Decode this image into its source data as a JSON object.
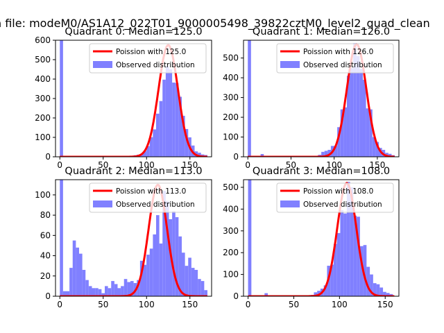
{
  "figure": {
    "suptitle": "n file: modeM0/AS1A12_022T01_9000005498_39822cztM0_level2_quad_clean"
  },
  "colors": {
    "bar": "#8080ff",
    "curve": "#ff0000",
    "axis": "#000000"
  },
  "chart_data": [
    {
      "type": "bar",
      "title": "Quadrant 0: Median=125.0",
      "xlim": [
        -5,
        175
      ],
      "ylim": [
        0,
        600
      ],
      "xticks": [
        0,
        50,
        100,
        150
      ],
      "yticks": [
        0,
        100,
        200,
        300,
        400,
        500,
        600
      ],
      "median": 125.0,
      "poisson_peak": 575,
      "legend": {
        "position": "top-right",
        "curve_label": "Poission with 125.0",
        "bar_label": "Observed distribution"
      },
      "bar_width": 3.7,
      "bars": [
        [
          0,
          600
        ],
        [
          3.7,
          3
        ],
        [
          7.4,
          2
        ],
        [
          11.1,
          2
        ],
        [
          14.8,
          2
        ],
        [
          18.5,
          1
        ],
        [
          22.2,
          2
        ],
        [
          25.9,
          1
        ],
        [
          29.6,
          1
        ],
        [
          33.3,
          1
        ],
        [
          37,
          1
        ],
        [
          40.7,
          1
        ],
        [
          44.4,
          1
        ],
        [
          48.1,
          1
        ],
        [
          51.8,
          1
        ],
        [
          55.5,
          1
        ],
        [
          59.2,
          1
        ],
        [
          62.9,
          1
        ],
        [
          66.6,
          1
        ],
        [
          70.3,
          1
        ],
        [
          74,
          1
        ],
        [
          77.7,
          2
        ],
        [
          81.4,
          4
        ],
        [
          85.1,
          8
        ],
        [
          88.8,
          11
        ],
        [
          92.5,
          15
        ],
        [
          96.2,
          29
        ],
        [
          99.9,
          55
        ],
        [
          103.6,
          101
        ],
        [
          107.3,
          141
        ],
        [
          111,
          222
        ],
        [
          114.7,
          287
        ],
        [
          118.4,
          397
        ],
        [
          122.1,
          465
        ],
        [
          125.8,
          450
        ],
        [
          129.5,
          382
        ],
        [
          133.2,
          379
        ],
        [
          136.9,
          309
        ],
        [
          140.6,
          211
        ],
        [
          144.3,
          143
        ],
        [
          148,
          100
        ],
        [
          151.7,
          58
        ],
        [
          155.4,
          28
        ],
        [
          159.1,
          21
        ],
        [
          162.8,
          12
        ],
        [
          166.5,
          9
        ]
      ]
    },
    {
      "type": "bar",
      "title": "Quadrant 1: Median=126.0",
      "xlim": [
        -5,
        175
      ],
      "ylim": [
        0,
        590
      ],
      "xticks": [
        0,
        50,
        100,
        150
      ],
      "yticks": [
        0,
        100,
        200,
        300,
        400,
        500
      ],
      "median": 126.0,
      "poisson_peak": 570,
      "legend": {
        "position": "top-right",
        "curve_label": "Poission with 126.0",
        "bar_label": "Observed distribution"
      },
      "bar_width": 3.7,
      "bars": [
        [
          0,
          590
        ],
        [
          3.7,
          3
        ],
        [
          7.4,
          2
        ],
        [
          11.1,
          2
        ],
        [
          14.8,
          14
        ],
        [
          18.5,
          3
        ],
        [
          22.2,
          3
        ],
        [
          25.9,
          2
        ],
        [
          29.6,
          2
        ],
        [
          33.3,
          2
        ],
        [
          37,
          2
        ],
        [
          40.7,
          2
        ],
        [
          44.4,
          1
        ],
        [
          48.1,
          2
        ],
        [
          51.8,
          2
        ],
        [
          55.5,
          1
        ],
        [
          59.2,
          1
        ],
        [
          62.9,
          1
        ],
        [
          66.6,
          1
        ],
        [
          70.3,
          1
        ],
        [
          74,
          2
        ],
        [
          77.7,
          5
        ],
        [
          81.4,
          10
        ],
        [
          85.1,
          25
        ],
        [
          88.8,
          30
        ],
        [
          92.5,
          35
        ],
        [
          96.2,
          55
        ],
        [
          99.9,
          55
        ],
        [
          103.6,
          150
        ],
        [
          107.3,
          240
        ],
        [
          111,
          250
        ],
        [
          114.7,
          410
        ],
        [
          118.4,
          450
        ],
        [
          122.1,
          575
        ],
        [
          125.8,
          510
        ],
        [
          129.5,
          445
        ],
        [
          133.2,
          390
        ],
        [
          136.9,
          245
        ],
        [
          140.6,
          240
        ],
        [
          144.3,
          100
        ],
        [
          148,
          75
        ],
        [
          151.7,
          45
        ],
        [
          155.4,
          35
        ],
        [
          159.1,
          20
        ],
        [
          162.8,
          15
        ],
        [
          166.5,
          8
        ]
      ]
    },
    {
      "type": "bar",
      "title": "Quadrant 2: Median=113.0",
      "xlim": [
        -5,
        175
      ],
      "ylim": [
        0,
        115
      ],
      "xticks": [
        0,
        50,
        100,
        150
      ],
      "yticks": [
        0,
        20,
        40,
        60,
        80,
        100
      ],
      "median": 113.0,
      "poisson_peak": 110,
      "legend": {
        "position": "top-right",
        "curve_label": "Poission with 113.0",
        "bar_label": "Observed distribution"
      },
      "bar_width": 3.7,
      "bars": [
        [
          0,
          115
        ],
        [
          3.7,
          5
        ],
        [
          7.4,
          5
        ],
        [
          11.1,
          28
        ],
        [
          14.8,
          55
        ],
        [
          18.5,
          48
        ],
        [
          22.2,
          42
        ],
        [
          25.9,
          26
        ],
        [
          29.6,
          16
        ],
        [
          33.3,
          10
        ],
        [
          37,
          8
        ],
        [
          40.7,
          8
        ],
        [
          44.4,
          7
        ],
        [
          48.1,
          3
        ],
        [
          51.8,
          10
        ],
        [
          55.5,
          8
        ],
        [
          59.2,
          15
        ],
        [
          62.9,
          12
        ],
        [
          66.6,
          8
        ],
        [
          70.3,
          10
        ],
        [
          74,
          17
        ],
        [
          77.7,
          14
        ],
        [
          81.4,
          15
        ],
        [
          85.1,
          13
        ],
        [
          88.8,
          16
        ],
        [
          92.5,
          35
        ],
        [
          96.2,
          31
        ],
        [
          99.9,
          41
        ],
        [
          103.6,
          47
        ],
        [
          107.3,
          61
        ],
        [
          111,
          80
        ],
        [
          114.7,
          52
        ],
        [
          118.4,
          104
        ],
        [
          122.1,
          94
        ],
        [
          125.8,
          76
        ],
        [
          129.5,
          84
        ],
        [
          133.2,
          78
        ],
        [
          136.9,
          59
        ],
        [
          140.6,
          43
        ],
        [
          144.3,
          30
        ],
        [
          148,
          38
        ],
        [
          151.7,
          28
        ],
        [
          155.4,
          26
        ],
        [
          159.1,
          17
        ],
        [
          162.8,
          15
        ],
        [
          166.5,
          6
        ]
      ]
    },
    {
      "type": "bar",
      "title": "Quadrant 3: Median=108.0",
      "xlim": [
        -5,
        165
      ],
      "ylim": [
        0,
        535
      ],
      "xticks": [
        0,
        50,
        100,
        150
      ],
      "yticks": [
        0,
        100,
        200,
        300,
        400,
        500
      ],
      "median": 108.0,
      "poisson_peak": 520,
      "legend": {
        "position": "top-right",
        "curve_label": "Poission with 108.0",
        "bar_label": "Observed distribution"
      },
      "bar_width": 3.6,
      "bars": [
        [
          0,
          535
        ],
        [
          3.6,
          3
        ],
        [
          7.2,
          2
        ],
        [
          10.8,
          2
        ],
        [
          14.4,
          2
        ],
        [
          18,
          14
        ],
        [
          21.6,
          2
        ],
        [
          25.2,
          2
        ],
        [
          28.8,
          2
        ],
        [
          32.4,
          2
        ],
        [
          36,
          2
        ],
        [
          39.6,
          2
        ],
        [
          43.2,
          2
        ],
        [
          46.8,
          2
        ],
        [
          50.4,
          2
        ],
        [
          54,
          2
        ],
        [
          57.6,
          3
        ],
        [
          61.2,
          3
        ],
        [
          64.8,
          4
        ],
        [
          68.4,
          6
        ],
        [
          72,
          18
        ],
        [
          75.6,
          25
        ],
        [
          79.2,
          35
        ],
        [
          82.8,
          50
        ],
        [
          86.4,
          140
        ],
        [
          90,
          145
        ],
        [
          93.6,
          240
        ],
        [
          97.2,
          290
        ],
        [
          100.8,
          395
        ],
        [
          104.4,
          380
        ],
        [
          108,
          525
        ],
        [
          111.6,
          500
        ],
        [
          115.2,
          370
        ],
        [
          118.8,
          365
        ],
        [
          122.4,
          230
        ],
        [
          126,
          235
        ],
        [
          129.6,
          135
        ],
        [
          133.2,
          100
        ],
        [
          136.8,
          60
        ],
        [
          140.4,
          55
        ],
        [
          144,
          40
        ],
        [
          147.6,
          20
        ],
        [
          151.2,
          15
        ],
        [
          154.8,
          10
        ]
      ]
    }
  ]
}
